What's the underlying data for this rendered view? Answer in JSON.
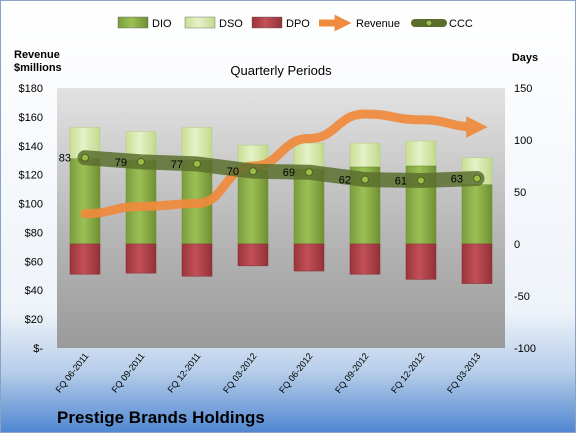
{
  "chart_data": {
    "type": "bar",
    "title": "Quarterly Periods",
    "company": "Prestige Brands Holdings",
    "left_axis_title": [
      "Revenue",
      "$millions"
    ],
    "right_axis_title": "Days",
    "left_ticks": [
      "$-",
      "$20",
      "$40",
      "$60",
      "$80",
      "$100",
      "$120",
      "$140",
      "$160",
      "$180"
    ],
    "right_ticks": [
      "-100",
      "-50",
      "0",
      "50",
      "100",
      "150"
    ],
    "right_ylim": [
      -100,
      150
    ],
    "left_ylim": [
      0,
      180
    ],
    "categories": [
      "FQ 06-2011",
      "FQ 09-2011",
      "FQ 12-2011",
      "FQ 03-2012",
      "FQ 06-2012",
      "FQ 09-2012",
      "FQ 12-2012",
      "FQ 03-2013"
    ],
    "series": [
      {
        "name": "DIO",
        "axis": "right",
        "values": [
          82,
          80,
          80,
          71,
          72,
          74,
          75,
          57
        ]
      },
      {
        "name": "DSO",
        "axis": "right",
        "values": [
          30,
          28,
          32,
          24,
          25,
          23,
          24,
          26
        ]
      },
      {
        "name": "DPO",
        "axis": "right",
        "values": [
          -29,
          -28,
          -31,
          -21,
          -26,
          -29,
          -34,
          -38
        ]
      },
      {
        "name": "Revenue",
        "axis": "left",
        "values": [
          93,
          98,
          100,
          126,
          145,
          162,
          158,
          153
        ]
      },
      {
        "name": "CCC",
        "axis": "right",
        "values": [
          83,
          79,
          77,
          70,
          69,
          62,
          61,
          63
        ]
      }
    ],
    "ccc_labels": [
      "83",
      "79",
      "77",
      "70",
      "69",
      "62",
      "61",
      "63"
    ],
    "colors": {
      "DIO": "#8db04a",
      "DSO": "#d7e8ab",
      "DPO": "#b3424a",
      "Revenue": "#f08a3c",
      "CCC": "#5c6e2e"
    }
  }
}
